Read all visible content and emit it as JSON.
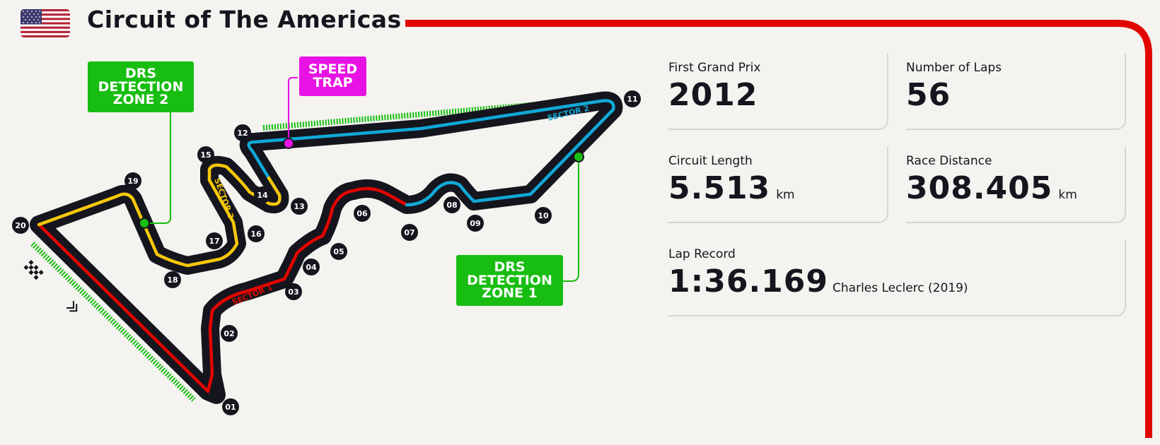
{
  "header": {
    "country_flag": "usa-flag",
    "title": "Circuit of The Americas"
  },
  "track": {
    "sectors": [
      {
        "label": "SECTOR 1",
        "color": "#e10600"
      },
      {
        "label": "SECTOR 2",
        "color": "#11a8d6"
      },
      {
        "label": "SECTOR 3",
        "color": "#f6c70b"
      }
    ],
    "turns": [
      "01",
      "02",
      "03",
      "04",
      "05",
      "06",
      "07",
      "08",
      "09",
      "10",
      "11",
      "12",
      "13",
      "14",
      "15",
      "16",
      "17",
      "18",
      "19",
      "20"
    ],
    "drs_detection_1": "DRS\nDETECTION\nZONE 1",
    "drs_detection_2": "DRS\nDETECTION\nZONE 2",
    "speed_trap": "SPEED\nTRAP",
    "colors": {
      "track": "#15151e",
      "drs": "#18bd12",
      "speed_trap": "#e713e4",
      "accent": "#e10600"
    }
  },
  "stats": {
    "first_gp": {
      "label": "First Grand Prix",
      "value": "2012"
    },
    "laps": {
      "label": "Number of Laps",
      "value": "56"
    },
    "length": {
      "label": "Circuit Length",
      "value": "5.513",
      "unit": "km"
    },
    "distance": {
      "label": "Race Distance",
      "value": "308.405",
      "unit": "km"
    },
    "lap_record": {
      "label": "Lap Record",
      "value": "1:36.169",
      "holder": "Charles Leclerc (2019)"
    }
  }
}
